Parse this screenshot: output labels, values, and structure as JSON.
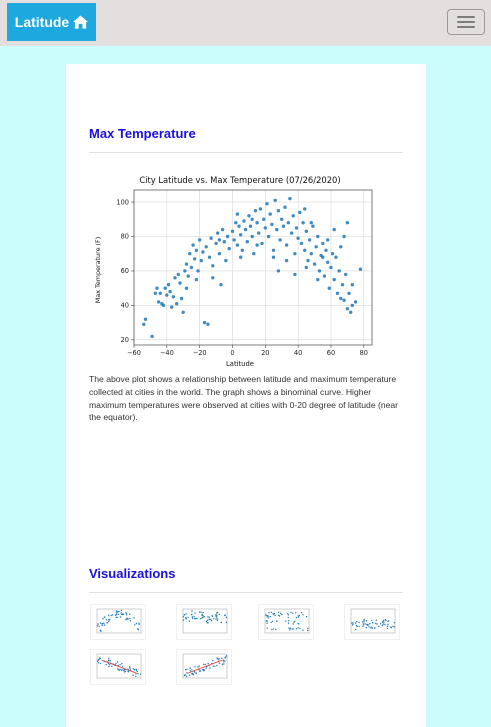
{
  "navbar": {
    "brand_label": "Latitude",
    "brand_icon": "home-icon",
    "toggler_icon": "hamburger-icon"
  },
  "colors": {
    "background": "#ccfdfd",
    "navbar": "#e3dfdf",
    "brand": "#1da8e0",
    "heading": "#1a0fe0",
    "scatter": "#1f77b4"
  },
  "sections": {
    "max_temp_title": "Max Temperature",
    "description": "The above plot shows a relationship between latitude and maximum temperature collected at cities in the world. The graph shows a binominal curve. Higher maximum temperatures were observed at cities with 0-20 degree of latitude (near the equator).",
    "visualizations_title": "Visualizations"
  },
  "chart_data": {
    "type": "scatter",
    "title": "City Latitude vs. Max Temperature (07/26/2020)",
    "xlabel": "Latitude",
    "ylabel": "Max Temperature (F)",
    "xlim": [
      -60,
      85
    ],
    "ylim": [
      17,
      107
    ],
    "x_ticks": [
      -60,
      -40,
      -20,
      0,
      20,
      40,
      60,
      80
    ],
    "y_ticks": [
      20,
      40,
      60,
      80,
      100
    ],
    "grid": true,
    "points": [
      [
        -54,
        29
      ],
      [
        -53,
        32
      ],
      [
        -49,
        22
      ],
      [
        -46,
        50
      ],
      [
        -45,
        42
      ],
      [
        -44,
        47
      ],
      [
        -43,
        41
      ],
      [
        -41,
        50
      ],
      [
        -40,
        46
      ],
      [
        -39,
        52
      ],
      [
        -38,
        48
      ],
      [
        -36,
        45
      ],
      [
        -35,
        56
      ],
      [
        -34,
        41
      ],
      [
        -33,
        58
      ],
      [
        -32,
        53
      ],
      [
        -31,
        44
      ],
      [
        -30,
        36
      ],
      [
        -29,
        60
      ],
      [
        -28,
        64
      ],
      [
        -27,
        57
      ],
      [
        -26,
        70
      ],
      [
        -25,
        62
      ],
      [
        -24,
        75
      ],
      [
        -23,
        67
      ],
      [
        -22,
        72
      ],
      [
        -21,
        60
      ],
      [
        -20,
        78
      ],
      [
        -19,
        66
      ],
      [
        -18,
        71
      ],
      [
        -17,
        30
      ],
      [
        -16,
        74
      ],
      [
        -15,
        29
      ],
      [
        -14,
        68
      ],
      [
        -13,
        79
      ],
      [
        -12,
        63
      ],
      [
        -10,
        76
      ],
      [
        -9,
        82
      ],
      [
        -8,
        70
      ],
      [
        -7,
        52
      ],
      [
        -6,
        84
      ],
      [
        -5,
        77
      ],
      [
        -3,
        80
      ],
      [
        -2,
        73
      ],
      [
        0,
        83
      ],
      [
        1,
        78
      ],
      [
        2,
        88
      ],
      [
        3,
        75
      ],
      [
        4,
        86
      ],
      [
        5,
        81
      ],
      [
        6,
        72
      ],
      [
        7,
        89
      ],
      [
        8,
        84
      ],
      [
        9,
        77
      ],
      [
        10,
        92
      ],
      [
        11,
        86
      ],
      [
        12,
        80
      ],
      [
        13,
        70
      ],
      [
        14,
        95
      ],
      [
        15,
        88
      ],
      [
        16,
        82
      ],
      [
        17,
        96
      ],
      [
        18,
        76
      ],
      [
        19,
        90
      ],
      [
        20,
        85
      ],
      [
        21,
        99
      ],
      [
        22,
        80
      ],
      [
        23,
        93
      ],
      [
        24,
        87
      ],
      [
        25,
        68
      ],
      [
        26,
        101
      ],
      [
        27,
        84
      ],
      [
        28,
        95
      ],
      [
        29,
        78
      ],
      [
        30,
        90
      ],
      [
        31,
        86
      ],
      [
        32,
        97
      ],
      [
        33,
        75
      ],
      [
        34,
        88
      ],
      [
        35,
        102
      ],
      [
        36,
        82
      ],
      [
        37,
        92
      ],
      [
        38,
        70
      ],
      [
        39,
        85
      ],
      [
        40,
        79
      ],
      [
        41,
        94
      ],
      [
        42,
        76
      ],
      [
        43,
        88
      ],
      [
        44,
        72
      ],
      [
        45,
        83
      ],
      [
        46,
        66
      ],
      [
        47,
        78
      ],
      [
        48,
        70
      ],
      [
        49,
        86
      ],
      [
        50,
        64
      ],
      [
        51,
        74
      ],
      [
        52,
        80
      ],
      [
        53,
        60
      ],
      [
        54,
        69
      ],
      [
        55,
        76
      ],
      [
        56,
        57
      ],
      [
        57,
        72
      ],
      [
        58,
        65
      ],
      [
        59,
        50
      ],
      [
        60,
        62
      ],
      [
        61,
        70
      ],
      [
        62,
        55
      ],
      [
        63,
        68
      ],
      [
        64,
        47
      ],
      [
        65,
        60
      ],
      [
        66,
        74
      ],
      [
        67,
        52
      ],
      [
        68,
        43
      ],
      [
        69,
        58
      ],
      [
        70,
        38
      ],
      [
        71,
        47
      ],
      [
        72,
        36
      ],
      [
        73,
        52
      ],
      [
        75,
        42
      ],
      [
        78,
        61
      ],
      [
        70,
        88
      ],
      [
        68,
        80
      ],
      [
        58,
        78
      ],
      [
        62,
        84
      ],
      [
        55,
        68
      ],
      [
        45,
        62
      ],
      [
        38,
        58
      ],
      [
        25,
        72
      ],
      [
        15,
        75
      ],
      [
        5,
        68
      ],
      [
        -8,
        78
      ],
      [
        -22,
        55
      ],
      [
        -28,
        50
      ],
      [
        -4,
        66
      ],
      [
        12,
        90
      ],
      [
        28,
        60
      ],
      [
        48,
        88
      ],
      [
        52,
        55
      ],
      [
        66,
        44
      ],
      [
        73,
        40
      ],
      [
        -42,
        40
      ],
      [
        -47,
        47
      ],
      [
        -37,
        39
      ],
      [
        -12,
        56
      ],
      [
        3,
        93
      ],
      [
        33,
        66
      ],
      [
        44,
        96
      ]
    ]
  },
  "thumbnails": [
    {
      "name": "thumbnail-max-temperature",
      "type": "arch",
      "points": [
        [
          0.1,
          0.75
        ],
        [
          0.2,
          0.5
        ],
        [
          0.3,
          0.35
        ],
        [
          0.4,
          0.25
        ],
        [
          0.5,
          0.2
        ],
        [
          0.6,
          0.25
        ],
        [
          0.7,
          0.35
        ],
        [
          0.8,
          0.5
        ],
        [
          0.9,
          0.7
        ]
      ]
    },
    {
      "name": "thumbnail-humidity",
      "type": "cloud",
      "points": [
        [
          0.15,
          0.35
        ],
        [
          0.3,
          0.25
        ],
        [
          0.45,
          0.3
        ],
        [
          0.55,
          0.45
        ],
        [
          0.7,
          0.3
        ],
        [
          0.85,
          0.4
        ]
      ]
    },
    {
      "name": "thumbnail-cloudiness",
      "type": "bands",
      "points": [
        [
          0.2,
          0.2
        ],
        [
          0.4,
          0.55
        ],
        [
          0.6,
          0.85
        ],
        [
          0.8,
          0.3
        ]
      ]
    },
    {
      "name": "thumbnail-wind-speed",
      "type": "floor",
      "points": [
        [
          0.1,
          0.7
        ],
        [
          0.3,
          0.6
        ],
        [
          0.5,
          0.65
        ],
        [
          0.7,
          0.55
        ],
        [
          0.9,
          0.7
        ]
      ]
    },
    {
      "name": "thumbnail-north-regression",
      "type": "down",
      "points": [
        [
          0.1,
          0.25
        ],
        [
          0.9,
          0.8
        ]
      ]
    },
    {
      "name": "thumbnail-south-regression",
      "type": "up",
      "points": [
        [
          0.1,
          0.8
        ],
        [
          0.9,
          0.25
        ]
      ]
    }
  ]
}
